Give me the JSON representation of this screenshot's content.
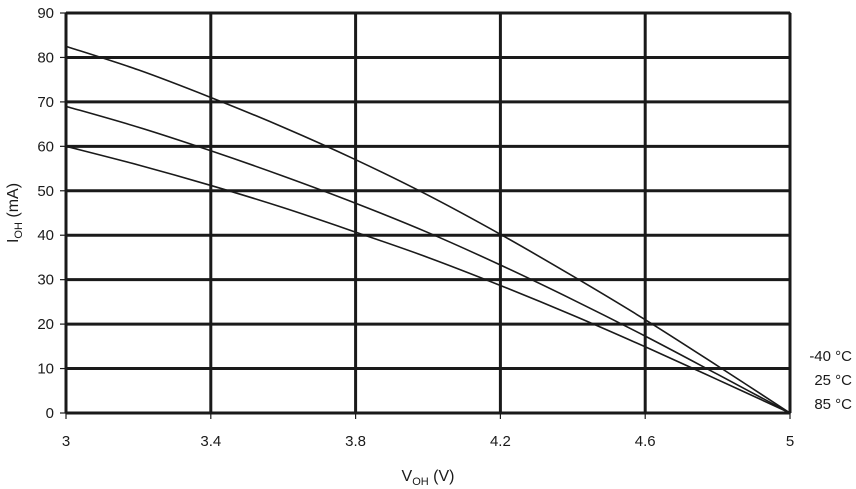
{
  "chart_data": {
    "type": "line",
    "title": "",
    "xlabel": {
      "main": "V",
      "sub": "OH",
      "unit": " (V)"
    },
    "ylabel": {
      "main": "I",
      "sub": "OH",
      "unit": " (mA)"
    },
    "xlim": [
      3,
      5
    ],
    "ylim": [
      0,
      90
    ],
    "xticks": [
      3,
      3.4,
      3.8,
      4.2,
      4.6,
      5
    ],
    "xtick_labels": [
      "3",
      "3.4",
      "3.8",
      "4.2",
      "4.6",
      "5"
    ],
    "yticks": [
      0,
      10,
      20,
      30,
      40,
      50,
      60,
      70,
      80,
      90
    ],
    "ytick_labels": [
      "0",
      "10",
      "20",
      "30",
      "40",
      "50",
      "60",
      "70",
      "80",
      "90"
    ],
    "grid": true,
    "legend_position": "right, next to the curve endpoints",
    "series": [
      {
        "name": "-40 °C",
        "color": "#1a1a1a",
        "x": [
          3.0,
          3.2,
          3.4,
          3.6,
          3.8,
          4.0,
          4.2,
          4.4,
          4.6,
          4.8,
          5.0
        ],
        "y": [
          82.5,
          77.2,
          71.0,
          64.3,
          57.0,
          49.0,
          40.2,
          30.8,
          21.0,
          10.6,
          0
        ]
      },
      {
        "name": "25 °C",
        "color": "#1a1a1a",
        "x": [
          3.0,
          3.2,
          3.4,
          3.6,
          3.8,
          4.0,
          4.2,
          4.4,
          4.6,
          4.8,
          5.0
        ],
        "y": [
          69.0,
          64.3,
          59.0,
          53.3,
          47.2,
          40.6,
          33.3,
          25.5,
          17.3,
          8.7,
          0
        ]
      },
      {
        "name": "85 °C",
        "color": "#1a1a1a",
        "x": [
          3.0,
          3.2,
          3.4,
          3.6,
          3.8,
          4.0,
          4.2,
          4.4,
          4.6,
          4.8,
          5.0
        ],
        "y": [
          60.0,
          55.8,
          51.2,
          46.2,
          40.7,
          35.0,
          28.7,
          22.0,
          14.9,
          7.5,
          0
        ]
      }
    ]
  }
}
